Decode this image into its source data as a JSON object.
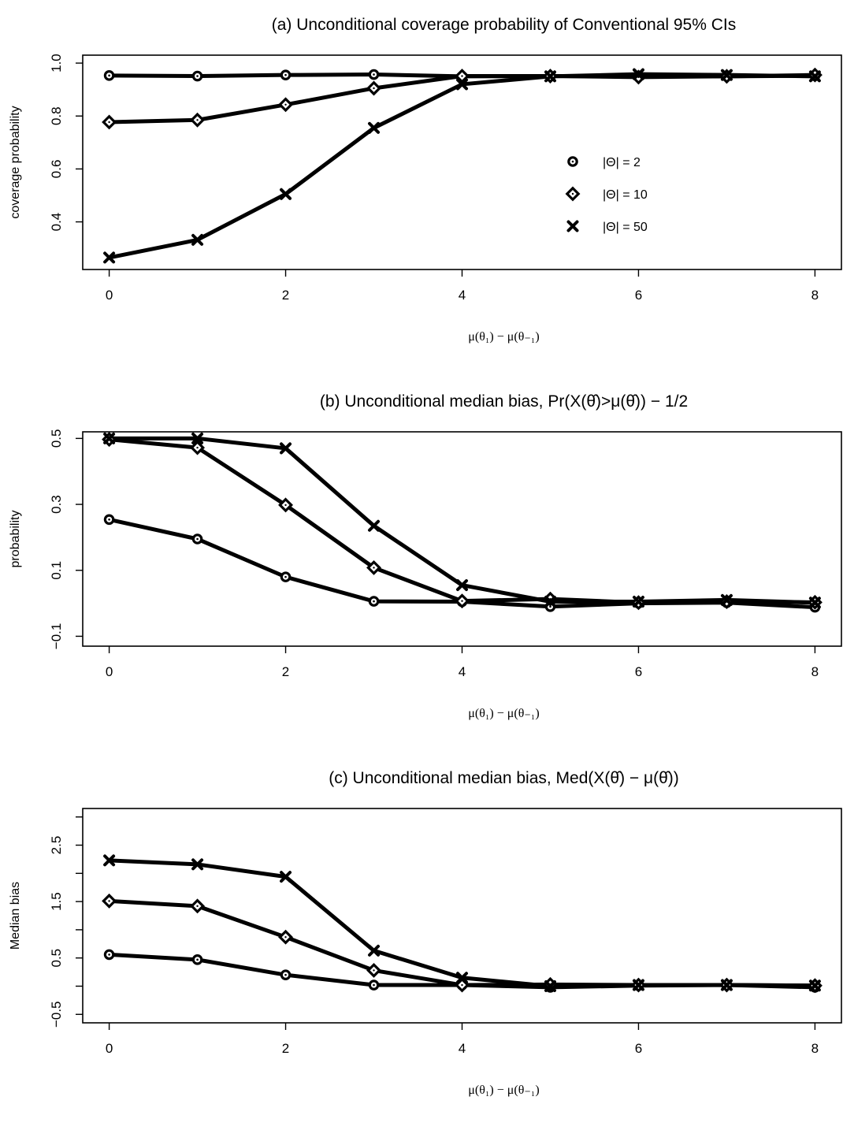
{
  "chart_data": [
    {
      "type": "line",
      "title": "(a) Unconditional coverage probability of Conventional 95% CIs",
      "xlabel": "μ(θ₁) − μ(θ₋₁)",
      "ylabel": "coverage probability",
      "x": [
        0,
        1,
        2,
        3,
        4,
        5,
        6,
        7,
        8
      ],
      "xticks": [
        0,
        2,
        4,
        6,
        8
      ],
      "xlim": [
        -0.3,
        8.3
      ],
      "ylim": [
        0.22,
        1.03
      ],
      "yticks": [
        0.4,
        0.6,
        0.8,
        1.0
      ],
      "ytick_labels": [
        "0.4",
        "0.6",
        "0.8",
        "1.0"
      ],
      "grid": false,
      "legend_position": "right-center",
      "series": [
        {
          "name": "|Θ| = 2",
          "marker": "circle",
          "values": [
            0.953,
            0.951,
            0.955,
            0.957,
            0.95,
            0.951,
            0.95,
            0.95,
            0.952
          ]
        },
        {
          "name": "|Θ| = 10",
          "marker": "diamond",
          "values": [
            0.777,
            0.785,
            0.843,
            0.905,
            0.951,
            0.951,
            0.947,
            0.95,
            0.955
          ]
        },
        {
          "name": "|Θ| = 50",
          "marker": "cross",
          "values": [
            0.265,
            0.332,
            0.505,
            0.755,
            0.92,
            0.95,
            0.958,
            0.955,
            0.95
          ]
        }
      ]
    },
    {
      "type": "line",
      "title": "(b) Unconditional median bias, Pr(X(θ̂)>μ(θ̂)) − 1/2",
      "xlabel": "μ(θ₁) − μ(θ₋₁)",
      "ylabel": "probability",
      "x": [
        0,
        1,
        2,
        3,
        4,
        5,
        6,
        7,
        8
      ],
      "xticks": [
        0,
        2,
        4,
        6,
        8
      ],
      "xlim": [
        -0.3,
        8.3
      ],
      "ylim": [
        -0.13,
        0.52
      ],
      "yticks": [
        -0.1,
        0.1,
        0.3,
        0.5
      ],
      "ytick_labels": [
        "−0.1",
        "0.1",
        "0.3",
        "0.5"
      ],
      "grid": false,
      "series": [
        {
          "name": "|Θ| = 2",
          "marker": "circle",
          "values": [
            0.254,
            0.195,
            0.08,
            0.006,
            0.005,
            -0.01,
            0.0,
            0.002,
            -0.012
          ]
        },
        {
          "name": "|Θ| = 10",
          "marker": "diamond",
          "values": [
            0.497,
            0.472,
            0.298,
            0.108,
            0.007,
            0.013,
            0.002,
            0.005,
            0.003
          ]
        },
        {
          "name": "|Θ| = 50",
          "marker": "cross",
          "values": [
            0.5,
            0.5,
            0.47,
            0.235,
            0.055,
            0.005,
            0.005,
            0.01,
            0.002
          ]
        }
      ]
    },
    {
      "type": "line",
      "title": "(c) Unconditional median bias, Med(X(θ̂) − μ(θ̂))",
      "xlabel": "μ(θ₁) − μ(θ₋₁)",
      "ylabel": "Median bias",
      "x": [
        0,
        1,
        2,
        3,
        4,
        5,
        6,
        7,
        8
      ],
      "xticks": [
        0,
        2,
        4,
        6,
        8
      ],
      "xlim": [
        -0.3,
        8.3
      ],
      "ylim": [
        -0.65,
        3.15
      ],
      "yticks": [
        -0.5,
        0.5,
        1.5,
        2.5
      ],
      "ytick_labels": [
        "−0.5",
        "0.5",
        "1.5",
        "2.5"
      ],
      "minor_yticks": [
        0,
        1,
        2,
        3
      ],
      "grid": false,
      "series": [
        {
          "name": "|Θ| = 2",
          "marker": "circle",
          "values": [
            0.56,
            0.47,
            0.2,
            0.02,
            0.02,
            -0.02,
            0.01,
            0.02,
            -0.02
          ]
        },
        {
          "name": "|Θ| = 10",
          "marker": "diamond",
          "values": [
            1.51,
            1.42,
            0.87,
            0.28,
            0.02,
            0.03,
            0.02,
            0.02,
            0.01
          ]
        },
        {
          "name": "|Θ| = 50",
          "marker": "cross",
          "values": [
            2.23,
            2.16,
            1.94,
            0.63,
            0.15,
            0.0,
            0.02,
            0.02,
            0.01
          ]
        }
      ]
    }
  ]
}
